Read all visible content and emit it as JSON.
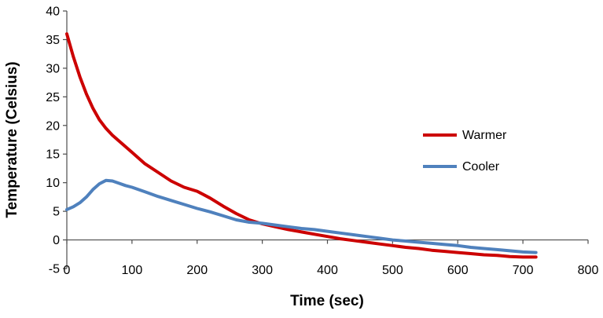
{
  "chart_data": {
    "type": "line",
    "title": "",
    "xlabel": "Time (sec)",
    "ylabel": "Temperature (Celsius)",
    "xlim": [
      0,
      800
    ],
    "ylim": [
      -5,
      40
    ],
    "x_ticks": [
      0,
      100,
      200,
      300,
      400,
      500,
      600,
      700,
      800
    ],
    "y_ticks": [
      -5,
      0,
      5,
      10,
      15,
      20,
      25,
      30,
      35,
      40
    ],
    "grid": false,
    "legend_position": "right",
    "axis_color": "#4d4d4d",
    "series": [
      {
        "name": "Warmer",
        "color": "#cc0000",
        "x": [
          0,
          10,
          20,
          30,
          40,
          50,
          60,
          70,
          80,
          90,
          100,
          120,
          140,
          160,
          180,
          200,
          220,
          240,
          260,
          280,
          300,
          320,
          340,
          360,
          380,
          400,
          420,
          440,
          460,
          480,
          500,
          520,
          540,
          560,
          580,
          600,
          620,
          640,
          660,
          680,
          700,
          720
        ],
        "y": [
          36,
          32,
          28.5,
          25.5,
          23,
          21,
          19.5,
          18.3,
          17.3,
          16.3,
          15.3,
          13.3,
          11.8,
          10.3,
          9.2,
          8.5,
          7.3,
          5.9,
          4.6,
          3.5,
          2.8,
          2.3,
          1.8,
          1.4,
          1.0,
          0.6,
          0.2,
          -0.1,
          -0.4,
          -0.7,
          -1.0,
          -1.3,
          -1.5,
          -1.8,
          -2.0,
          -2.2,
          -2.4,
          -2.6,
          -2.7,
          -2.9,
          -3.0,
          -3.0
        ]
      },
      {
        "name": "Cooler",
        "color": "#4f81bd",
        "x": [
          0,
          10,
          20,
          30,
          40,
          50,
          60,
          70,
          80,
          90,
          100,
          120,
          140,
          160,
          180,
          200,
          220,
          240,
          260,
          280,
          300,
          320,
          340,
          360,
          380,
          400,
          420,
          440,
          460,
          480,
          500,
          520,
          540,
          560,
          580,
          600,
          620,
          640,
          660,
          680,
          700,
          720
        ],
        "y": [
          5.3,
          5.8,
          6.5,
          7.5,
          8.8,
          9.8,
          10.4,
          10.3,
          9.9,
          9.5,
          9.2,
          8.4,
          7.6,
          6.9,
          6.2,
          5.5,
          4.9,
          4.2,
          3.5,
          3.1,
          2.9,
          2.6,
          2.3,
          2.0,
          1.8,
          1.5,
          1.2,
          0.9,
          0.6,
          0.3,
          0.0,
          -0.2,
          -0.4,
          -0.6,
          -0.8,
          -1.0,
          -1.3,
          -1.5,
          -1.7,
          -1.9,
          -2.1,
          -2.2
        ]
      }
    ]
  }
}
